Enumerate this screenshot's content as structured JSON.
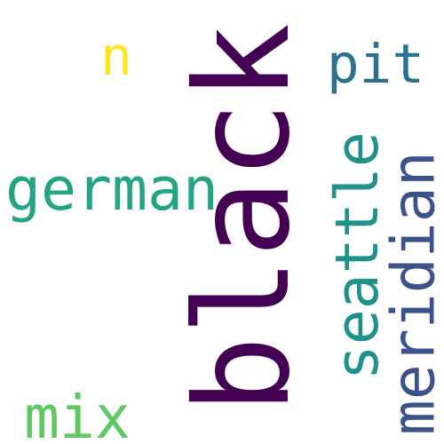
{
  "words": [
    {
      "text": "black",
      "color": "#440154",
      "orientation": "vertical"
    },
    {
      "text": "meridian",
      "color": "#3b528b",
      "orientation": "vertical"
    },
    {
      "text": "seattle",
      "color": "#21918c",
      "orientation": "vertical"
    },
    {
      "text": "german",
      "color": "#25a485",
      "orientation": "horizontal"
    },
    {
      "text": "pit",
      "color": "#2c728e",
      "orientation": "horizontal"
    },
    {
      "text": "mix",
      "color": "#5ec962",
      "orientation": "horizontal"
    },
    {
      "text": "n",
      "color": "#fde725",
      "orientation": "horizontal"
    }
  ]
}
